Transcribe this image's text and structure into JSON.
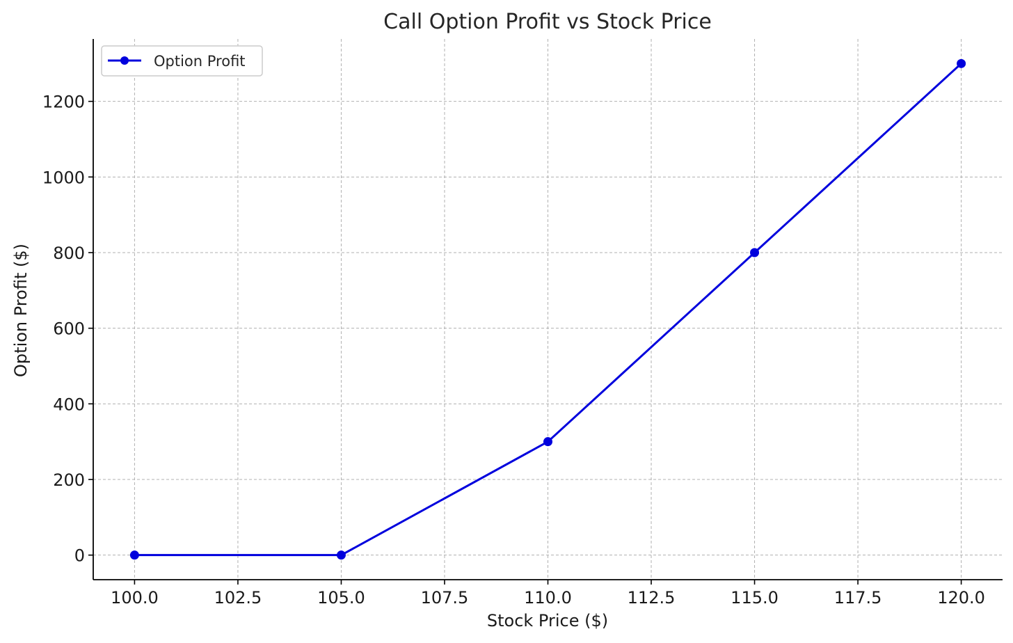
{
  "chart_data": {
    "type": "line",
    "title": "Call Option Profit vs Stock Price",
    "xlabel": "Stock Price ($)",
    "ylabel": "Option Profit ($)",
    "x": [
      100,
      105,
      110,
      115,
      120
    ],
    "series": [
      {
        "name": "Option Profit",
        "values": [
          0,
          0,
          300,
          800,
          1300
        ],
        "color": "#0000dd"
      }
    ],
    "xlim": [
      99.0,
      121.0
    ],
    "ylim": [
      -65,
      1365
    ],
    "xticks": [
      100.0,
      102.5,
      105.0,
      107.5,
      110.0,
      112.5,
      115.0,
      117.5,
      120.0
    ],
    "xtick_labels": [
      "100.0",
      "102.5",
      "105.0",
      "107.5",
      "110.0",
      "112.5",
      "115.0",
      "117.5",
      "120.0"
    ],
    "yticks": [
      0,
      200,
      400,
      600,
      800,
      1000,
      1200
    ],
    "ytick_labels": [
      "0",
      "200",
      "400",
      "600",
      "800",
      "1000",
      "1200"
    ],
    "grid": true,
    "legend_position": "top-left"
  }
}
